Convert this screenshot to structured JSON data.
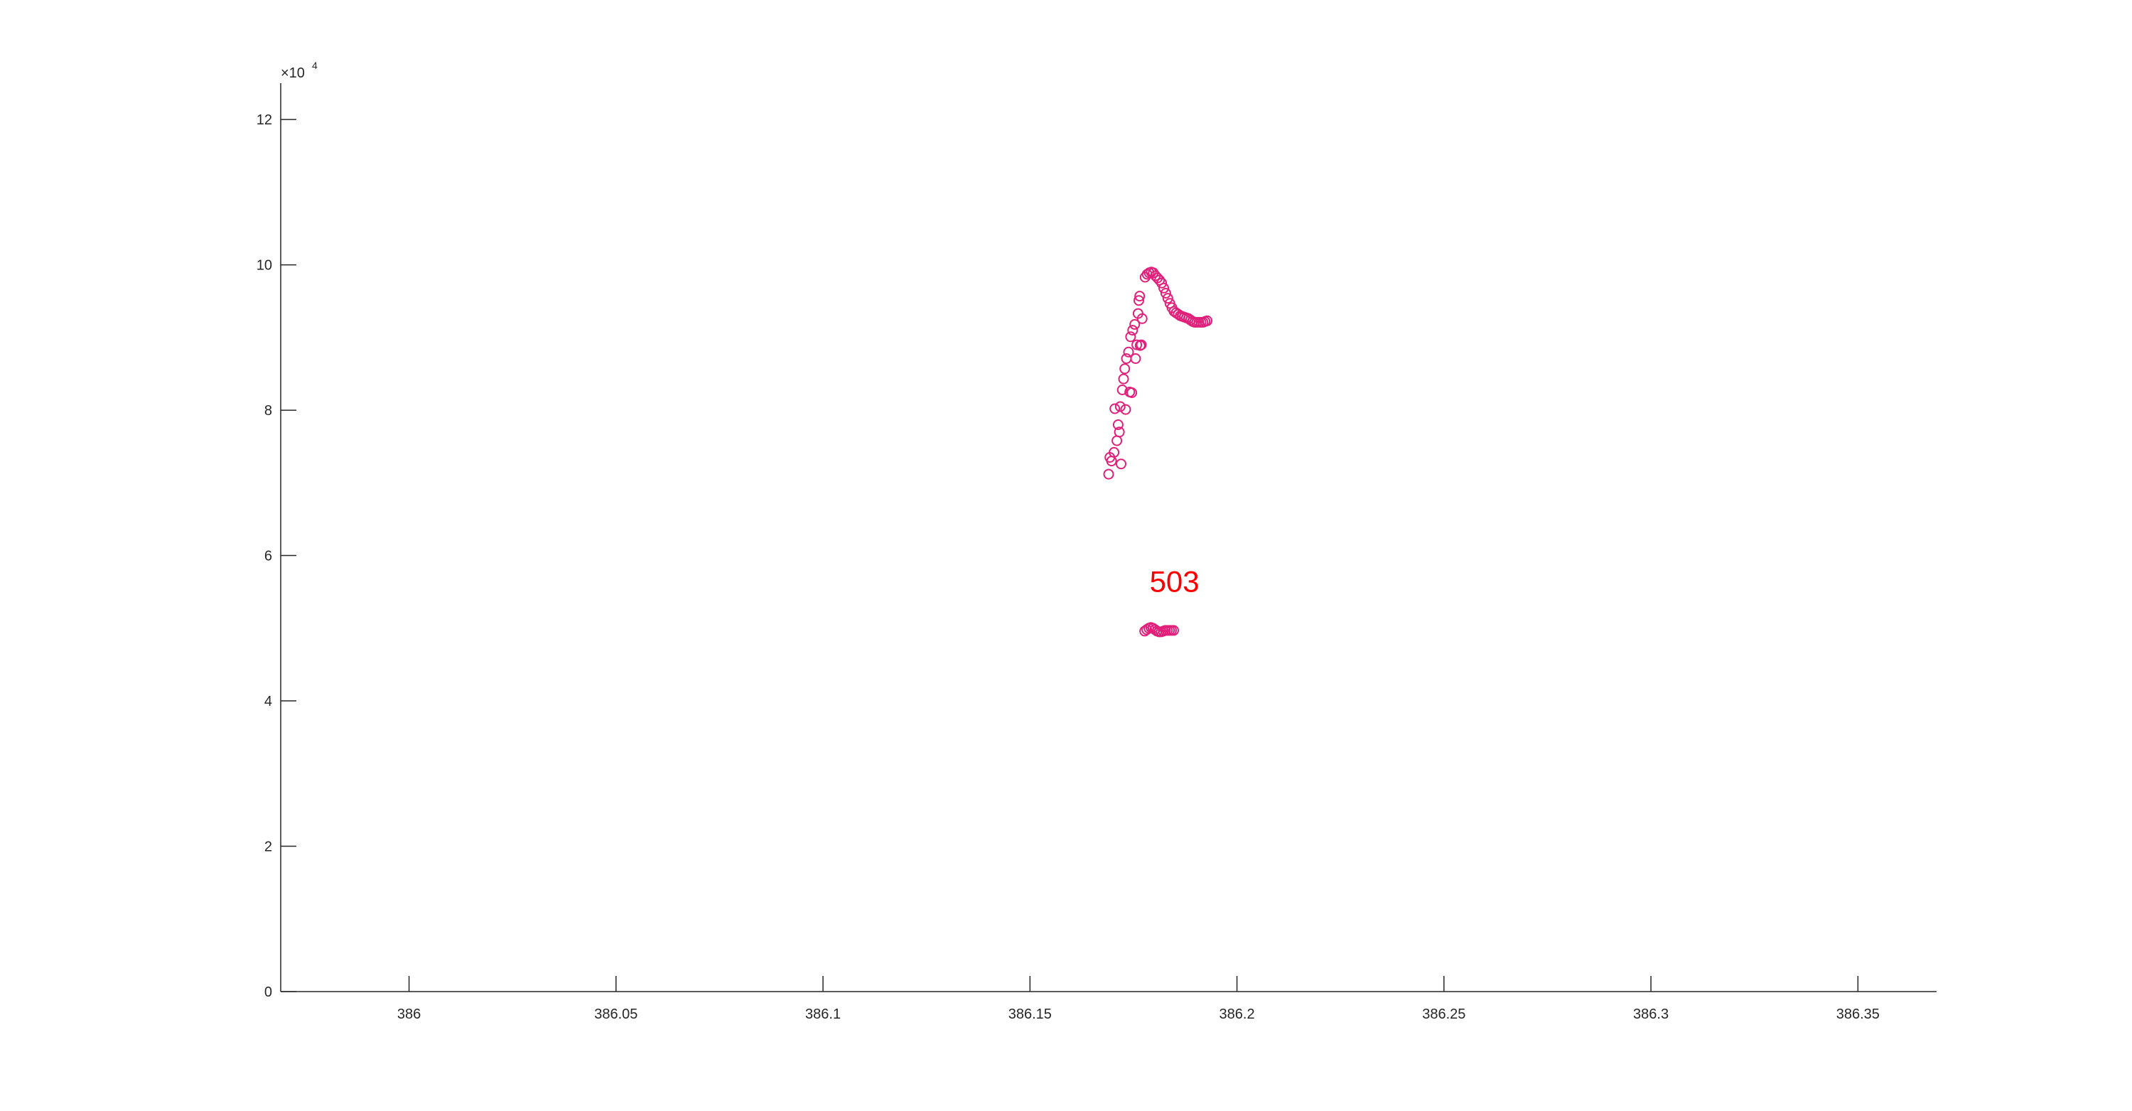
{
  "chart_data": {
    "type": "scatter",
    "title": "",
    "xlabel": "",
    "ylabel": "",
    "xlim": [
      385.969,
      386.369
    ],
    "ylim": [
      0,
      125000
    ],
    "x_ticks": [
      "386",
      "386.05",
      "386.1",
      "386.15",
      "386.2",
      "386.25",
      "386.3",
      "386.35"
    ],
    "y_ticks": [
      "0",
      "2",
      "4",
      "6",
      "8",
      "10",
      "12"
    ],
    "y_exponent": {
      "base": "×10",
      "power": "4"
    },
    "grid": false,
    "marker": "open-circle",
    "marker_color": "#e0207a",
    "series": [
      {
        "values": [
          [
            386.169,
            71200
          ],
          [
            386.1693,
            73500
          ],
          [
            386.1697,
            73000
          ],
          [
            386.1703,
            74200
          ],
          [
            386.1705,
            80200
          ],
          [
            386.171,
            75800
          ],
          [
            386.1713,
            78000
          ],
          [
            386.1716,
            77000
          ],
          [
            386.1718,
            80500
          ],
          [
            386.172,
            72600
          ],
          [
            386.1723,
            82800
          ],
          [
            386.1726,
            84300
          ],
          [
            386.1729,
            85700
          ],
          [
            386.1731,
            80100
          ],
          [
            386.1733,
            87100
          ],
          [
            386.1738,
            88000
          ],
          [
            386.1741,
            82500
          ],
          [
            386.1743,
            90100
          ],
          [
            386.1746,
            82400
          ],
          [
            386.1748,
            91000
          ],
          [
            386.1753,
            91800
          ],
          [
            386.1755,
            87100
          ],
          [
            386.1758,
            89000
          ],
          [
            386.1761,
            93300
          ],
          [
            386.1763,
            95100
          ],
          [
            386.1765,
            95700
          ],
          [
            386.1766,
            88900
          ],
          [
            386.1769,
            89000
          ],
          [
            386.1771,
            92600
          ],
          [
            386.1778,
            98300
          ],
          [
            386.1783,
            98700
          ],
          [
            386.1788,
            98900
          ],
          [
            386.1793,
            99000
          ],
          [
            386.1798,
            98900
          ],
          [
            386.1803,
            98500
          ],
          [
            386.1808,
            98200
          ],
          [
            386.1813,
            97900
          ],
          [
            386.1818,
            97500
          ],
          [
            386.1823,
            96800
          ],
          [
            386.1828,
            96100
          ],
          [
            386.1833,
            95400
          ],
          [
            386.1838,
            94700
          ],
          [
            386.1843,
            94100
          ],
          [
            386.1848,
            93600
          ],
          [
            386.1853,
            93400
          ],
          [
            386.1858,
            93200
          ],
          [
            386.1863,
            93000
          ],
          [
            386.1868,
            92900
          ],
          [
            386.1873,
            92800
          ],
          [
            386.1878,
            92700
          ],
          [
            386.1883,
            92600
          ],
          [
            386.1888,
            92400
          ],
          [
            386.1893,
            92200
          ],
          [
            386.1898,
            92100
          ],
          [
            386.1903,
            92100
          ],
          [
            386.1908,
            92100
          ],
          [
            386.1913,
            92100
          ],
          [
            386.1918,
            92100
          ],
          [
            386.1923,
            92200
          ],
          [
            386.1928,
            92300
          ],
          [
            386.1777,
            49600
          ],
          [
            386.1782,
            49800
          ],
          [
            386.1787,
            50000
          ],
          [
            386.1792,
            50100
          ],
          [
            386.1797,
            50000
          ],
          [
            386.1802,
            49800
          ],
          [
            386.1807,
            49600
          ],
          [
            386.1812,
            49500
          ],
          [
            386.1817,
            49500
          ],
          [
            386.1822,
            49600
          ],
          [
            386.1827,
            49700
          ],
          [
            386.1832,
            49700
          ],
          [
            386.1837,
            49700
          ],
          [
            386.1842,
            49700
          ],
          [
            386.1847,
            49700
          ]
        ]
      }
    ],
    "annotations": [
      {
        "text": "503",
        "x": 386.1849,
        "y": 55000,
        "color": "#ff0000"
      }
    ]
  }
}
